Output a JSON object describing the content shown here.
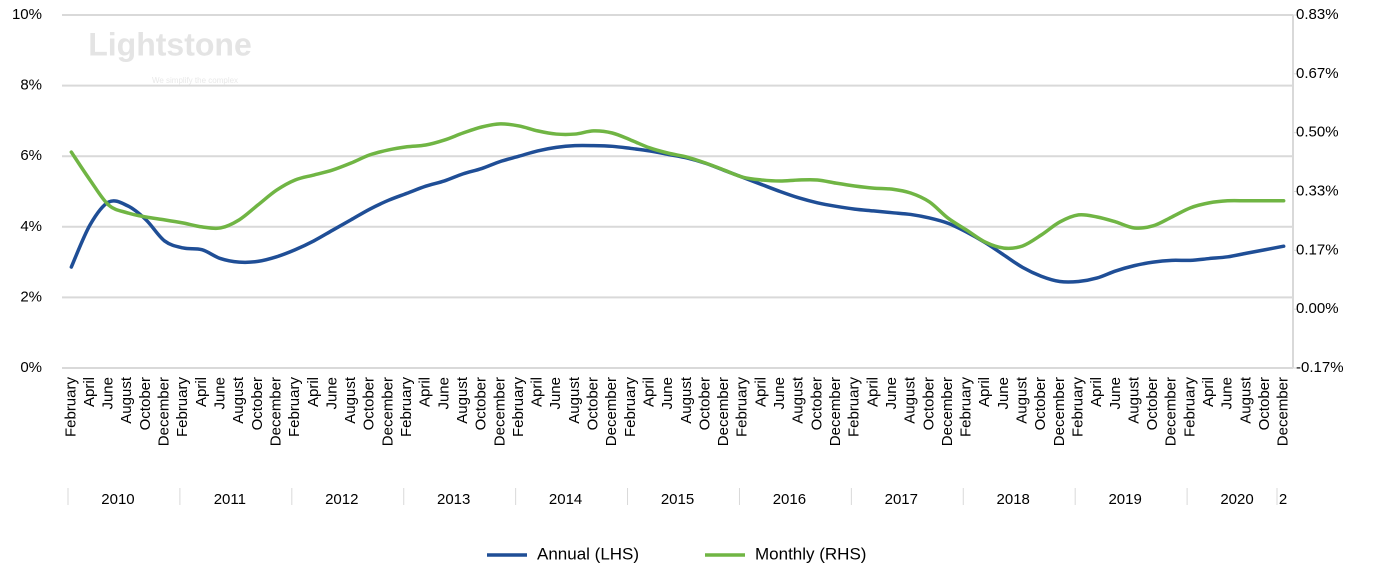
{
  "watermark": {
    "brand": "Lightstone",
    "tagline": "We simplify the complex"
  },
  "chart_data": {
    "type": "line",
    "categories": [
      "February",
      "April",
      "June",
      "August",
      "October",
      "December",
      "February",
      "April",
      "June",
      "August",
      "October",
      "December",
      "February",
      "April",
      "June",
      "August",
      "October",
      "December",
      "February",
      "April",
      "June",
      "August",
      "October",
      "December",
      "February",
      "April",
      "June",
      "August",
      "October",
      "December",
      "February",
      "April",
      "June",
      "August",
      "October",
      "December",
      "February",
      "April",
      "June",
      "August",
      "October",
      "December",
      "February",
      "April",
      "June",
      "August",
      "October",
      "December",
      "February",
      "April",
      "June",
      "August",
      "October",
      "December",
      "February",
      "April",
      "June",
      "August",
      "October",
      "December",
      "February",
      "April",
      "June",
      "August",
      "October",
      "December"
    ],
    "year_groups": [
      "2010",
      "2011",
      "2012",
      "2013",
      "2014",
      "2015",
      "2016",
      "2017",
      "2018",
      "2019",
      "2020",
      "2"
    ],
    "series": [
      {
        "name": "Annual (LHS)",
        "color": "#1f4e96",
        "axis": "y",
        "values": [
          2.86,
          4.05,
          4.7,
          4.6,
          4.2,
          3.6,
          3.4,
          3.35,
          3.1,
          3.0,
          3.02,
          3.15,
          3.35,
          3.6,
          3.9,
          4.2,
          4.5,
          4.75,
          4.95,
          5.15,
          5.3,
          5.5,
          5.65,
          5.85,
          6.0,
          6.15,
          6.25,
          6.3,
          6.3,
          6.28,
          6.22,
          6.15,
          6.05,
          5.95,
          5.8,
          5.6,
          5.4,
          5.2,
          5.0,
          4.82,
          4.68,
          4.58,
          4.5,
          4.45,
          4.4,
          4.35,
          4.25,
          4.1,
          3.85,
          3.55,
          3.2,
          2.85,
          2.6,
          2.45,
          2.45,
          2.55,
          2.75,
          2.9,
          3.0,
          3.05,
          3.05,
          3.1,
          3.15,
          3.25,
          3.35,
          3.45
        ]
      },
      {
        "name": "Monthly (RHS)",
        "color": "#70b544",
        "axis": "y2",
        "values": [
          0.445,
          0.366,
          0.295,
          0.273,
          0.261,
          0.253,
          0.244,
          0.233,
          0.23,
          0.253,
          0.295,
          0.337,
          0.366,
          0.38,
          0.394,
          0.414,
          0.437,
          0.451,
          0.46,
          0.465,
          0.479,
          0.499,
          0.516,
          0.525,
          0.519,
          0.505,
          0.496,
          0.496,
          0.505,
          0.499,
          0.479,
          0.457,
          0.442,
          0.431,
          0.414,
          0.394,
          0.374,
          0.366,
          0.363,
          0.366,
          0.366,
          0.357,
          0.349,
          0.343,
          0.34,
          0.329,
          0.304,
          0.258,
          0.224,
          0.19,
          0.173,
          0.179,
          0.21,
          0.247,
          0.267,
          0.261,
          0.247,
          0.23,
          0.236,
          0.261,
          0.287,
          0.301,
          0.307,
          0.307,
          0.307,
          0.307
        ]
      }
    ],
    "ylim": [
      0,
      10
    ],
    "yticks": [
      {
        "value": 0,
        "label": "0%"
      },
      {
        "value": 2,
        "label": "2%"
      },
      {
        "value": 4,
        "label": "4%"
      },
      {
        "value": 6,
        "label": "6%"
      },
      {
        "value": 8,
        "label": "8%"
      },
      {
        "value": 10,
        "label": "10%"
      }
    ],
    "y2lim": [
      -0.1667,
      0.8333
    ],
    "y2ticks": [
      {
        "value": -0.1667,
        "label": "-0.17%"
      },
      {
        "value": 0,
        "label": "0.00%"
      },
      {
        "value": 0.1667,
        "label": "0.17%"
      },
      {
        "value": 0.3333,
        "label": "0.33%"
      },
      {
        "value": 0.5,
        "label": "0.50%"
      },
      {
        "value": 0.6667,
        "label": "0.67%"
      },
      {
        "value": 0.8333,
        "label": "0.83%"
      }
    ],
    "grid": true,
    "legend": "bottom"
  }
}
